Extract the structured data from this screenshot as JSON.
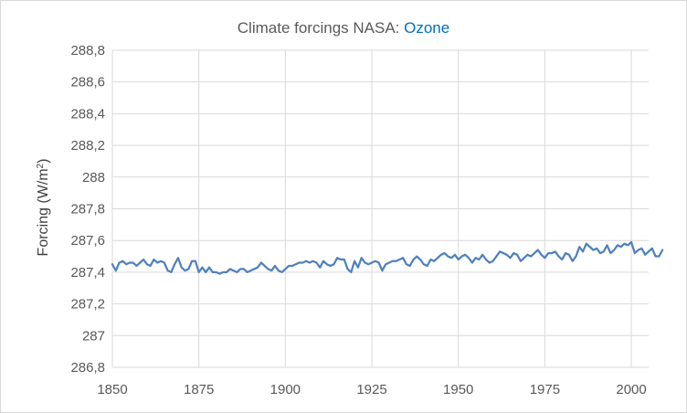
{
  "chart_data": {
    "type": "line",
    "title_prefix": "Climate forcings NASA: ",
    "title_highlight": "Ozone",
    "title_highlight_color": "#0070c0",
    "ylabel_main": "Forcing (W/m",
    "ylabel_sup": "2",
    "ylabel_end": ")",
    "xlabel": "",
    "xlim": [
      1850,
      2005
    ],
    "ylim": [
      286.8,
      288.8
    ],
    "x_ticks": [
      1850,
      1875,
      1900,
      1925,
      1950,
      1975,
      2000
    ],
    "x_tick_labels": [
      "1850",
      "1875",
      "1900",
      "1925",
      "1950",
      "1975",
      "2000"
    ],
    "y_ticks": [
      286.8,
      287.0,
      287.2,
      287.4,
      287.6,
      287.8,
      288.0,
      288.2,
      288.4,
      288.6,
      288.8
    ],
    "y_tick_labels": [
      "286,8",
      "287",
      "287,2",
      "287,4",
      "287,6",
      "287,8",
      "288",
      "288,2",
      "288,4",
      "288,6",
      "288,8"
    ],
    "grid": true,
    "legend": false,
    "series": [
      {
        "name": "Ozone",
        "color": "#4f81bd",
        "x_start": 1850,
        "x_step": 1,
        "values": [
          287.45,
          287.41,
          287.46,
          287.47,
          287.45,
          287.46,
          287.46,
          287.44,
          287.46,
          287.48,
          287.45,
          287.44,
          287.48,
          287.46,
          287.47,
          287.46,
          287.41,
          287.4,
          287.45,
          287.49,
          287.43,
          287.41,
          287.42,
          287.47,
          287.47,
          287.4,
          287.43,
          287.4,
          287.43,
          287.4,
          287.4,
          287.39,
          287.4,
          287.4,
          287.42,
          287.41,
          287.4,
          287.42,
          287.42,
          287.4,
          287.41,
          287.42,
          287.43,
          287.46,
          287.44,
          287.42,
          287.41,
          287.44,
          287.41,
          287.4,
          287.42,
          287.44,
          287.44,
          287.45,
          287.46,
          287.46,
          287.47,
          287.46,
          287.47,
          287.46,
          287.43,
          287.47,
          287.45,
          287.44,
          287.45,
          287.49,
          287.48,
          287.48,
          287.42,
          287.4,
          287.47,
          287.43,
          287.49,
          287.46,
          287.45,
          287.46,
          287.47,
          287.46,
          287.41,
          287.45,
          287.46,
          287.47,
          287.47,
          287.48,
          287.49,
          287.45,
          287.44,
          287.48,
          287.5,
          287.48,
          287.45,
          287.44,
          287.48,
          287.47,
          287.49,
          287.51,
          287.52,
          287.5,
          287.49,
          287.51,
          287.48,
          287.5,
          287.51,
          287.49,
          287.46,
          287.49,
          287.48,
          287.51,
          287.48,
          287.46,
          287.47,
          287.5,
          287.53,
          287.52,
          287.51,
          287.49,
          287.52,
          287.51,
          287.47,
          287.49,
          287.51,
          287.5,
          287.52,
          287.54,
          287.51,
          287.49,
          287.52,
          287.52,
          287.53,
          287.5,
          287.48,
          287.52,
          287.51,
          287.47,
          287.5,
          287.56,
          287.53,
          287.58,
          287.56,
          287.54,
          287.55,
          287.52,
          287.53,
          287.57,
          287.52,
          287.54,
          287.57,
          287.56,
          287.58,
          287.57,
          287.59,
          287.52,
          287.54,
          287.55,
          287.51,
          287.53,
          287.55,
          287.5,
          287.5,
          287.54
        ]
      }
    ]
  }
}
